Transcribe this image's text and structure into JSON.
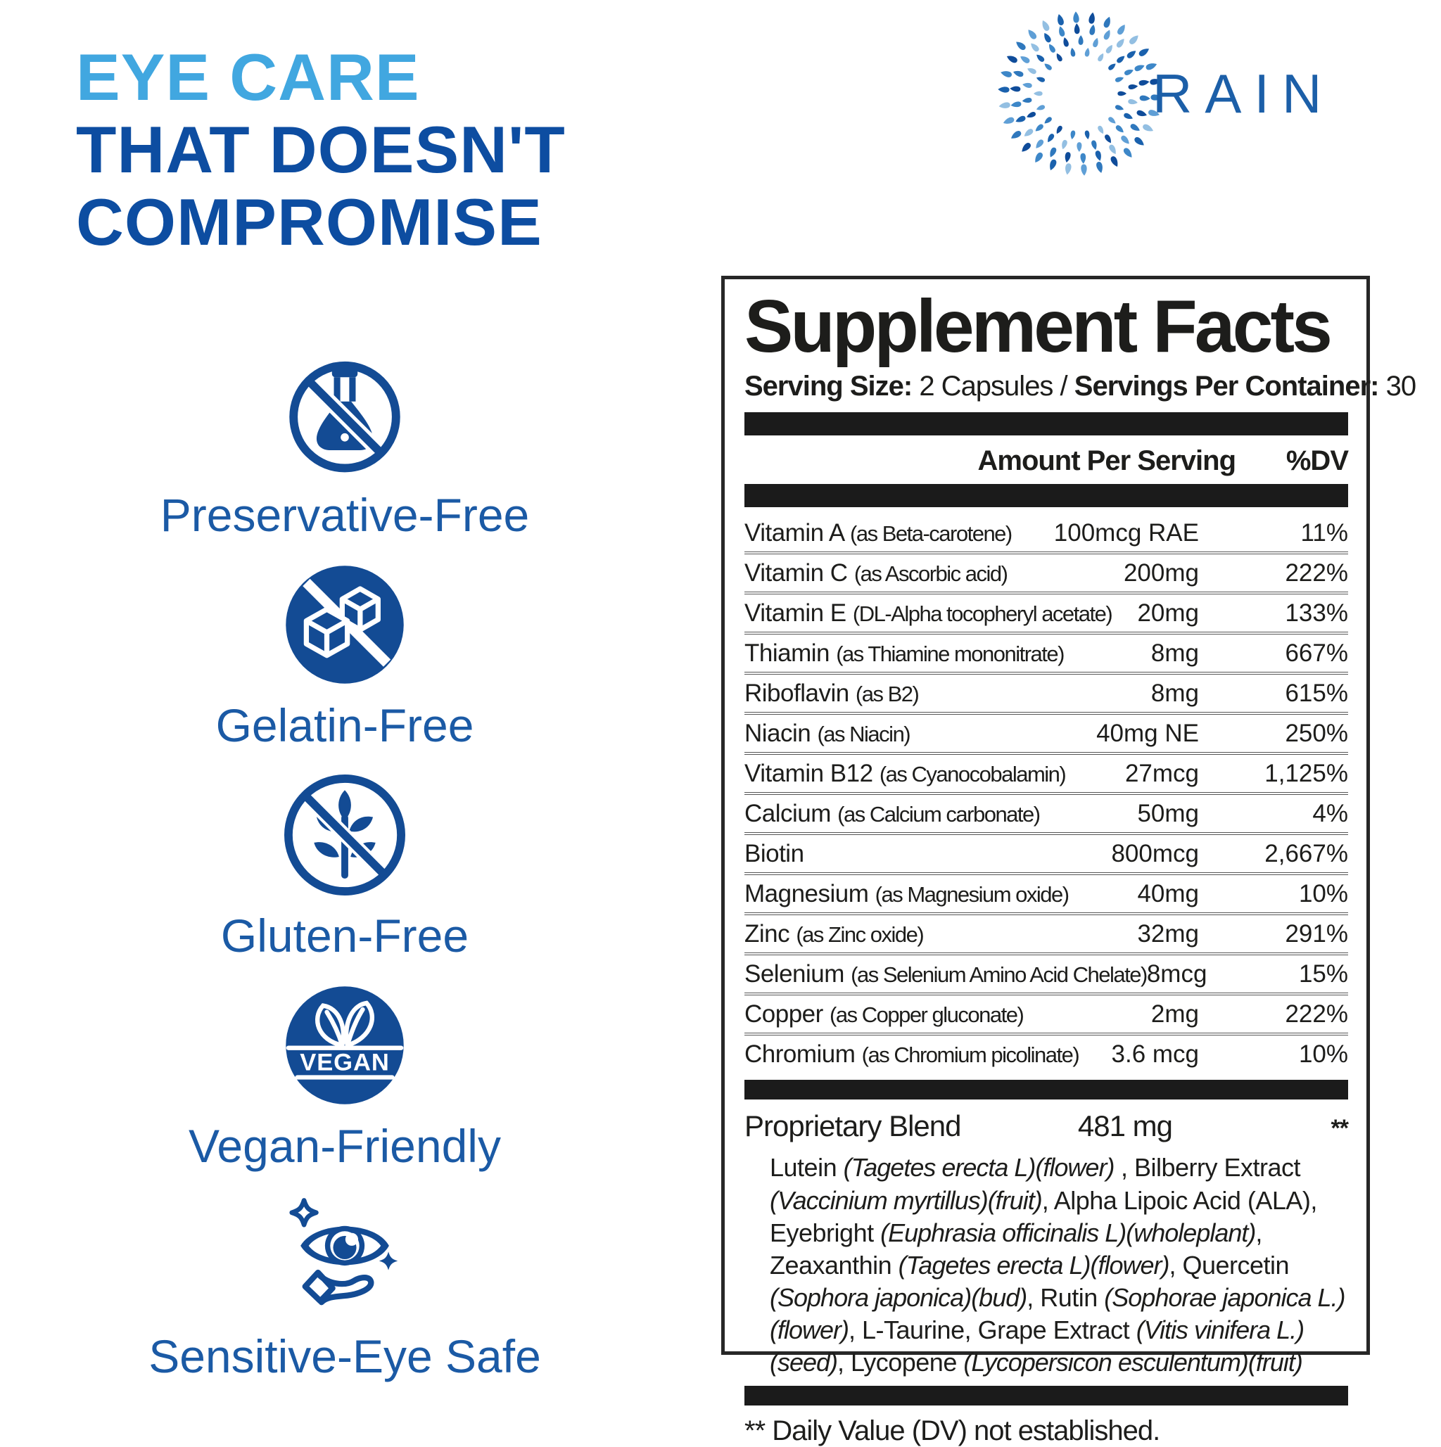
{
  "headline": {
    "line1": "EYE CARE",
    "line2": "THAT DOESN'T",
    "line3": "COMPROMISE"
  },
  "brand": {
    "name": "RAIN"
  },
  "badges": [
    {
      "icon": "no-preservatives-flask-icon",
      "label": "Preservative-Free"
    },
    {
      "icon": "no-gelatin-cubes-icon",
      "label": "Gelatin-Free"
    },
    {
      "icon": "no-gluten-plant-icon",
      "label": "Gluten-Free"
    },
    {
      "icon": "vegan-leaves-icon",
      "label": "Vegan-Friendly",
      "badge_text": "VEGAN"
    },
    {
      "icon": "sensitive-eye-hand-icon",
      "label": "Sensitive-Eye Safe"
    }
  ],
  "panel": {
    "title": "Supplement Facts",
    "serving_parts": [
      {
        "text": "Serving Size:",
        "bold": true
      },
      {
        "text": " 2 Capsules / ",
        "bold": false
      },
      {
        "text": "Servings Per Container:",
        "bold": true
      },
      {
        "text": " 30",
        "bold": false
      }
    ],
    "columns": {
      "amount": "Amount Per Serving",
      "dv": "%DV"
    },
    "rows": [
      {
        "name": "Vitamin A",
        "detail": "(as Beta-carotene)",
        "amount": "100mcg RAE",
        "dv": "11%"
      },
      {
        "name": "Vitamin C",
        "detail": "(as Ascorbic acid)",
        "amount": "200mg",
        "dv": "222%"
      },
      {
        "name": "Vitamin E",
        "detail": "(DL-Alpha tocopheryl acetate)",
        "amount": "20mg",
        "dv": "133%"
      },
      {
        "name": "Thiamin",
        "detail": "(as Thiamine mononitrate)",
        "amount": "8mg",
        "dv": "667%"
      },
      {
        "name": "Riboflavin",
        "detail": "(as B2)",
        "amount": "8mg",
        "dv": "615%"
      },
      {
        "name": "Niacin",
        "detail": "(as Niacin)",
        "amount": "40mg NE",
        "dv": "250%"
      },
      {
        "name": "Vitamin B12",
        "detail": "(as Cyanocobalamin)",
        "amount": "27mcg",
        "dv": "1,125%"
      },
      {
        "name": "Calcium",
        "detail": "(as Calcium carbonate)",
        "amount": "50mg",
        "dv": "4%"
      },
      {
        "name": "Biotin",
        "detail": "",
        "amount": "800mcg",
        "dv": "2,667%"
      },
      {
        "name": "Magnesium",
        "detail": "(as Magnesium oxide)",
        "amount": "40mg",
        "dv": "10%"
      },
      {
        "name": "Zinc",
        "detail": "(as Zinc oxide)",
        "amount": "32mg",
        "dv": "291%"
      },
      {
        "name": "Selenium",
        "detail": "(as Selenium Amino Acid Chelate)",
        "amount": "8mcg",
        "dv": "15%"
      },
      {
        "name": "Copper",
        "detail": "(as Copper gluconate)",
        "amount": "2mg",
        "dv": "222%"
      },
      {
        "name": "Chromium",
        "detail": "(as Chromium picolinate)",
        "amount": "3.6 mcg",
        "dv": "10%"
      }
    ],
    "proprietary": {
      "name": "Proprietary Blend",
      "amount": "481 mg",
      "dv": "**"
    },
    "blend_segments": [
      {
        "text": "Lutein ",
        "italic": false
      },
      {
        "text": "(Tagetes erecta L)(flower)",
        "italic": true
      },
      {
        "text": " , Bilberry Extract ",
        "italic": false
      },
      {
        "text": "(Vaccinium myrtillus)(fruit)",
        "italic": true
      },
      {
        "text": ", Alpha Lipoic Acid (ALA), Eyebright ",
        "italic": false
      },
      {
        "text": "(Euphrasia officinalis L)(wholeplant)",
        "italic": true
      },
      {
        "text": ", Zeaxanthin ",
        "italic": false
      },
      {
        "text": "(Tagetes erecta L)(flower)",
        "italic": true
      },
      {
        "text": ", Quercetin ",
        "italic": false
      },
      {
        "text": "(Sophora japonica)(bud)",
        "italic": true
      },
      {
        "text": ", Rutin ",
        "italic": false
      },
      {
        "text": "(Sophorae japonica L.)(flower)",
        "italic": true
      },
      {
        "text": ", L-Taurine, Grape Extract ",
        "italic": false
      },
      {
        "text": "(Vitis vinifera L.)(seed)",
        "italic": true
      },
      {
        "text": ", Lycopene ",
        "italic": false
      },
      {
        "text": "(Lycopersicon esculentum)(fruit)",
        "italic": true
      }
    ],
    "footnote": "** Daily Value (DV) not established."
  },
  "colors": {
    "light_blue": "#41a7e0",
    "dark_blue": "#0d4da1",
    "icon_blue": "#134b94",
    "label_blue": "#1b5aa5",
    "brand_blue": "#1c5fa8",
    "panel_ink": "#1d1d1b",
    "logo_palette": [
      "#0f4c9a",
      "#2f78bd",
      "#5f9fd6",
      "#93bfe2",
      "#1a61ad",
      "#3d87c8"
    ]
  }
}
